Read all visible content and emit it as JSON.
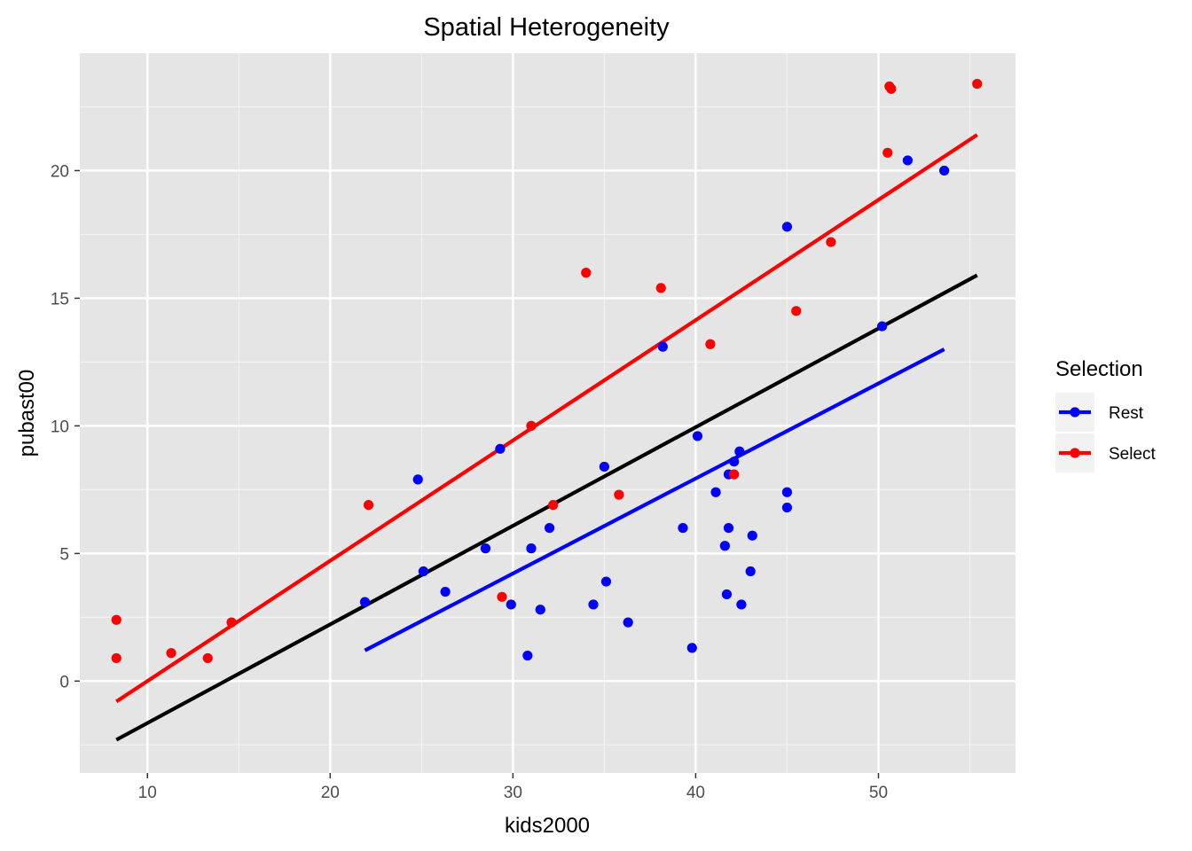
{
  "chart_data": {
    "type": "scatter",
    "title": "Spatial Heterogeneity",
    "xlabel": "kids2000",
    "ylabel": "pubast00",
    "xlim": [
      6.3,
      57.5
    ],
    "ylim": [
      -3.6,
      24.6
    ],
    "x_ticks": [
      10,
      20,
      30,
      40,
      50
    ],
    "y_ticks": [
      0,
      5,
      10,
      15,
      20
    ],
    "x_tick_labels": [
      "10",
      "20",
      "30",
      "40",
      "50"
    ],
    "y_tick_labels": [
      "0",
      "5",
      "10",
      "15",
      "20"
    ],
    "grid": true,
    "panel_background": "#e5e5e5",
    "legend": {
      "title": "Selection",
      "position": "right",
      "entries": [
        {
          "label": "Rest",
          "color": "#0000ff"
        },
        {
          "label": "Select",
          "color": "#ff0000"
        }
      ]
    },
    "series": [
      {
        "name": "Rest",
        "color": "#0000ff",
        "points": [
          [
            21.9,
            3.1
          ],
          [
            24.8,
            7.9
          ],
          [
            25.1,
            4.3
          ],
          [
            26.3,
            3.5
          ],
          [
            28.5,
            5.2
          ],
          [
            29.3,
            9.1
          ],
          [
            29.9,
            3.0
          ],
          [
            30.8,
            1.0
          ],
          [
            31.0,
            5.2
          ],
          [
            31.5,
            2.8
          ],
          [
            32.0,
            6.0
          ],
          [
            34.4,
            3.0
          ],
          [
            35.0,
            8.4
          ],
          [
            35.1,
            3.9
          ],
          [
            36.3,
            2.3
          ],
          [
            38.2,
            13.1
          ],
          [
            39.3,
            6.0
          ],
          [
            39.8,
            1.3
          ],
          [
            40.1,
            9.6
          ],
          [
            41.1,
            7.4
          ],
          [
            41.6,
            5.3
          ],
          [
            41.7,
            3.4
          ],
          [
            41.8,
            8.1
          ],
          [
            41.8,
            6.0
          ],
          [
            42.1,
            8.6
          ],
          [
            42.4,
            9.0
          ],
          [
            42.5,
            3.0
          ],
          [
            43.0,
            4.3
          ],
          [
            43.1,
            5.7
          ],
          [
            45.0,
            17.8
          ],
          [
            45.0,
            7.4
          ],
          [
            45.0,
            6.8
          ],
          [
            50.2,
            13.9
          ],
          [
            51.6,
            20.4
          ],
          [
            53.6,
            20.0
          ]
        ],
        "fit_line": [
          [
            21.9,
            1.2
          ],
          [
            53.6,
            13.0
          ]
        ]
      },
      {
        "name": "Select",
        "color": "#ff0000",
        "points": [
          [
            8.3,
            2.4
          ],
          [
            8.3,
            0.9
          ],
          [
            11.3,
            1.1
          ],
          [
            13.3,
            0.9
          ],
          [
            14.6,
            2.3
          ],
          [
            22.1,
            6.9
          ],
          [
            29.4,
            3.3
          ],
          [
            31.0,
            10.0
          ],
          [
            32.2,
            6.9
          ],
          [
            34.0,
            16.0
          ],
          [
            35.8,
            7.3
          ],
          [
            38.1,
            15.4
          ],
          [
            40.8,
            13.2
          ],
          [
            42.1,
            8.1
          ],
          [
            45.5,
            14.5
          ],
          [
            47.4,
            17.2
          ],
          [
            50.5,
            20.7
          ],
          [
            50.6,
            23.3
          ],
          [
            50.7,
            23.2
          ],
          [
            55.4,
            23.4
          ]
        ],
        "fit_line": [
          [
            8.3,
            -0.8
          ],
          [
            55.4,
            21.4
          ]
        ]
      }
    ],
    "overall_fit": {
      "color": "#000000",
      "line": [
        [
          8.3,
          -2.3
        ],
        [
          55.4,
          15.9
        ]
      ]
    }
  }
}
